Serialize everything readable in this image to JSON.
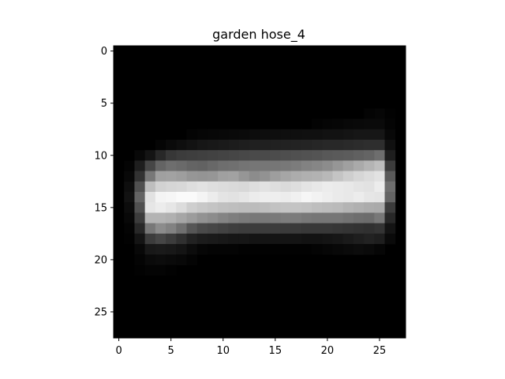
{
  "chart_data": {
    "type": "heatmap",
    "title": "garden hose_4",
    "colormap": "gray",
    "value_range": [
      0,
      255
    ],
    "xlim": [
      -0.5,
      27.5
    ],
    "ylim": [
      27.5,
      -0.5
    ],
    "x_ticks": [
      0,
      5,
      10,
      15,
      20,
      25
    ],
    "y_ticks": [
      0,
      5,
      10,
      15,
      20,
      25
    ],
    "x_tick_labels": [
      "0",
      "5",
      "10",
      "15",
      "20",
      "25"
    ],
    "y_tick_labels": [
      "0",
      "5",
      "10",
      "15",
      "20",
      "25"
    ],
    "grid": false,
    "rows": 28,
    "cols": 28,
    "nonzero_rows": [
      {
        "row": 6,
        "values": [
          0,
          0,
          0,
          0,
          0,
          0,
          0,
          0,
          0,
          0,
          0,
          0,
          0,
          0,
          0,
          0,
          0,
          0,
          0,
          0,
          0,
          0,
          0,
          0,
          4,
          6,
          2,
          0
        ]
      },
      {
        "row": 7,
        "values": [
          0,
          0,
          0,
          0,
          0,
          0,
          0,
          0,
          0,
          0,
          0,
          0,
          0,
          0,
          0,
          0,
          0,
          0,
          0,
          3,
          5,
          6,
          8,
          9,
          10,
          10,
          4,
          0
        ]
      },
      {
        "row": 8,
        "values": [
          0,
          0,
          0,
          0,
          0,
          0,
          0,
          4,
          6,
          7,
          8,
          9,
          10,
          12,
          13,
          14,
          15,
          15,
          16,
          16,
          18,
          18,
          20,
          22,
          22,
          22,
          8,
          0
        ]
      },
      {
        "row": 9,
        "values": [
          0,
          0,
          0,
          0,
          5,
          10,
          14,
          18,
          22,
          24,
          26,
          28,
          30,
          32,
          32,
          33,
          34,
          35,
          36,
          38,
          40,
          40,
          42,
          44,
          46,
          46,
          16,
          0
        ]
      },
      {
        "row": 10,
        "values": [
          0,
          0,
          8,
          20,
          40,
          55,
          60,
          62,
          64,
          66,
          68,
          70,
          72,
          74,
          74,
          76,
          78,
          80,
          82,
          84,
          88,
          90,
          92,
          96,
          100,
          110,
          30,
          0
        ]
      },
      {
        "row": 11,
        "values": [
          0,
          4,
          30,
          70,
          100,
          110,
          106,
          100,
          98,
          104,
          110,
          112,
          116,
          118,
          118,
          118,
          120,
          124,
          130,
          134,
          140,
          150,
          160,
          170,
          180,
          190,
          60,
          0
        ]
      },
      {
        "row": 12,
        "values": [
          0,
          8,
          50,
          120,
          160,
          162,
          158,
          150,
          148,
          150,
          160,
          162,
          150,
          140,
          146,
          158,
          166,
          172,
          176,
          178,
          184,
          196,
          206,
          214,
          220,
          226,
          90,
          0
        ]
      },
      {
        "row": 13,
        "values": [
          0,
          14,
          80,
          190,
          210,
          214,
          216,
          222,
          226,
          222,
          220,
          218,
          216,
          222,
          226,
          222,
          218,
          222,
          228,
          232,
          236,
          234,
          232,
          228,
          226,
          236,
          110,
          0
        ]
      },
      {
        "row": 14,
        "values": [
          0,
          18,
          100,
          226,
          244,
          246,
          250,
          250,
          244,
          236,
          228,
          226,
          230,
          236,
          238,
          238,
          236,
          240,
          246,
          242,
          238,
          234,
          232,
          236,
          230,
          228,
          100,
          0
        ]
      },
      {
        "row": 15,
        "values": [
          0,
          12,
          80,
          230,
          236,
          230,
          220,
          206,
          200,
          196,
          192,
          190,
          188,
          188,
          190,
          194,
          196,
          196,
          194,
          190,
          188,
          186,
          180,
          176,
          172,
          170,
          60,
          0
        ]
      },
      {
        "row": 16,
        "values": [
          0,
          8,
          60,
          180,
          180,
          176,
          166,
          156,
          146,
          140,
          132,
          126,
          122,
          120,
          120,
          122,
          124,
          124,
          120,
          118,
          118,
          118,
          114,
          110,
          108,
          120,
          40,
          0
        ]
      },
      {
        "row": 17,
        "values": [
          0,
          4,
          40,
          120,
          140,
          130,
          112,
          86,
          74,
          70,
          66,
          62,
          60,
          60,
          60,
          60,
          58,
          58,
          56,
          56,
          56,
          54,
          52,
          50,
          48,
          52,
          20,
          0
        ]
      },
      {
        "row": 18,
        "values": [
          0,
          2,
          20,
          60,
          70,
          60,
          48,
          34,
          28,
          26,
          24,
          22,
          22,
          20,
          20,
          20,
          20,
          20,
          18,
          18,
          20,
          22,
          26,
          30,
          34,
          30,
          10,
          0
        ]
      },
      {
        "row": 19,
        "values": [
          0,
          0,
          8,
          24,
          26,
          24,
          20,
          12,
          6,
          4,
          4,
          4,
          2,
          2,
          2,
          2,
          2,
          2,
          2,
          4,
          6,
          8,
          10,
          12,
          10,
          6,
          0,
          0
        ]
      },
      {
        "row": 20,
        "values": [
          0,
          0,
          4,
          10,
          12,
          10,
          8,
          4,
          0,
          0,
          0,
          0,
          0,
          0,
          0,
          0,
          0,
          0,
          0,
          0,
          0,
          0,
          0,
          0,
          0,
          0,
          0,
          0
        ]
      },
      {
        "row": 21,
        "values": [
          0,
          0,
          2,
          4,
          4,
          2,
          0,
          0,
          0,
          0,
          0,
          0,
          0,
          0,
          0,
          0,
          0,
          0,
          0,
          0,
          0,
          0,
          0,
          0,
          0,
          0,
          0,
          0
        ]
      }
    ]
  }
}
